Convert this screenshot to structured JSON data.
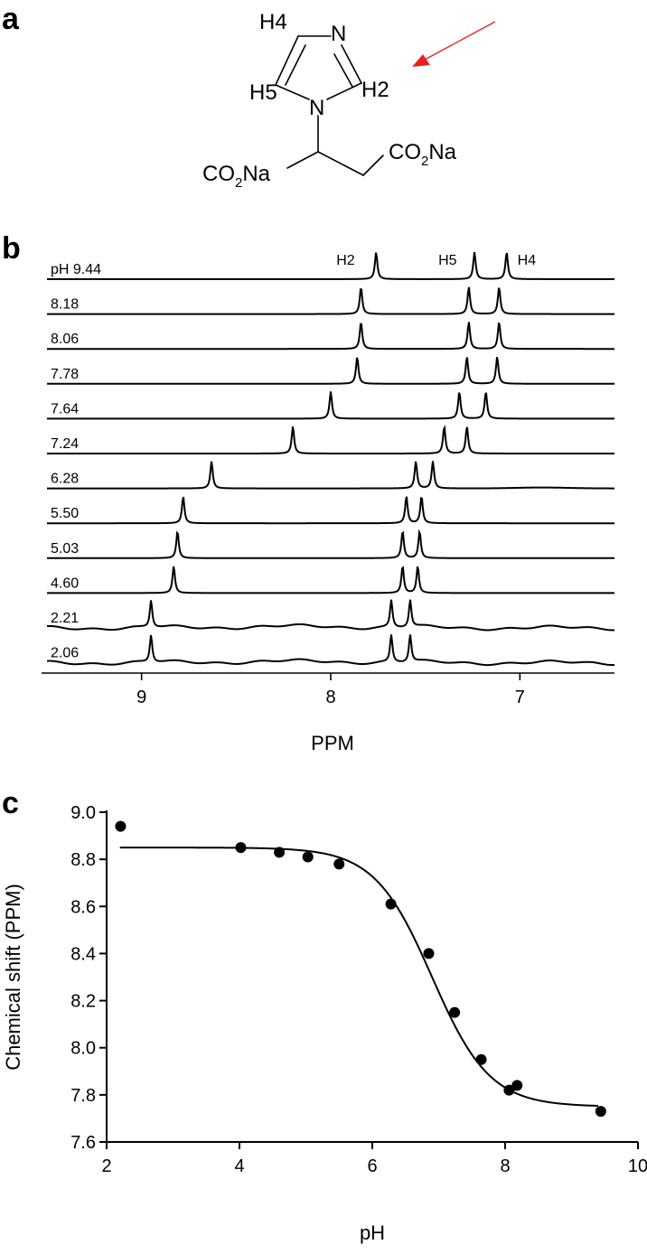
{
  "panel_labels": {
    "a": "a",
    "b": "b",
    "c": "c"
  },
  "colors": {
    "arrow": "#e8201e",
    "ink": "#000000"
  },
  "structure": {
    "atoms": {
      "n_top": "N",
      "n_bottom": "N",
      "h2": "H2",
      "h4": "H4",
      "h5": "H5"
    },
    "groups": {
      "left": {
        "main": "CO",
        "sub": "2",
        "tail": "Na"
      },
      "right": {
        "main": "CO",
        "sub": "2",
        "tail": "Na"
      }
    }
  },
  "chart_data": [
    {
      "type": "line",
      "title": "",
      "xlabel": "PPM",
      "ylabel": "",
      "x_reversed": true,
      "xlim": [
        9.5,
        6.5
      ],
      "xticks": [
        9,
        8,
        7
      ],
      "xtick_labels": [
        "9",
        "8",
        "7"
      ],
      "peak_labels": [
        "H2",
        "H5",
        "H4"
      ],
      "series": [
        {
          "name": "pH 9.44",
          "label": "pH 9.44",
          "peaks": [
            7.76,
            7.24,
            7.07
          ]
        },
        {
          "name": "8.18",
          "label": "8.18",
          "peaks": [
            7.84,
            7.27,
            7.11
          ]
        },
        {
          "name": "8.06",
          "label": "8.06",
          "peaks": [
            7.84,
            7.27,
            7.11
          ]
        },
        {
          "name": "7.78",
          "label": "7.78",
          "peaks": [
            7.86,
            7.28,
            7.12
          ]
        },
        {
          "name": "7.64",
          "label": "7.64",
          "peaks": [
            8.0,
            7.32,
            7.18
          ]
        },
        {
          "name": "7.24",
          "label": "7.24",
          "peaks": [
            8.2,
            7.4,
            7.28
          ]
        },
        {
          "name": "6.28",
          "label": "6.28",
          "peaks": [
            8.63,
            7.55,
            7.46
          ]
        },
        {
          "name": "5.50",
          "label": "5.50",
          "peaks": [
            8.78,
            7.6,
            7.52
          ]
        },
        {
          "name": "5.03",
          "label": "5.03",
          "peaks": [
            8.81,
            7.62,
            7.53
          ]
        },
        {
          "name": "4.60",
          "label": "4.60",
          "peaks": [
            8.83,
            7.62,
            7.54
          ]
        },
        {
          "name": "2.21",
          "label": "2.21",
          "peaks": [
            8.95,
            7.68,
            7.58
          ]
        },
        {
          "name": "2.06",
          "label": "2.06",
          "peaks": [
            8.95,
            7.68,
            7.58
          ]
        }
      ]
    },
    {
      "type": "scatter",
      "title": "",
      "xlabel": "pH",
      "ylabel": "Chemical shift (PPM)",
      "xlim": [
        2,
        10
      ],
      "ylim": [
        7.6,
        9.0
      ],
      "xticks": [
        2,
        4,
        6,
        8,
        10
      ],
      "yticks": [
        "7.6",
        "7.8",
        "8.0",
        "8.2",
        "8.4",
        "8.6",
        "8.8",
        "9.0"
      ],
      "points": [
        {
          "x": 2.21,
          "y": 8.94
        },
        {
          "x": 4.02,
          "y": 8.85
        },
        {
          "x": 4.6,
          "y": 8.83
        },
        {
          "x": 5.03,
          "y": 8.81
        },
        {
          "x": 5.5,
          "y": 8.78
        },
        {
          "x": 6.28,
          "y": 8.61
        },
        {
          "x": 6.85,
          "y": 8.4
        },
        {
          "x": 7.24,
          "y": 8.15
        },
        {
          "x": 7.64,
          "y": 7.95
        },
        {
          "x": 8.06,
          "y": 7.82
        },
        {
          "x": 8.18,
          "y": 7.84
        },
        {
          "x": 9.44,
          "y": 7.73
        }
      ],
      "fit_curve": {
        "x_range": [
          2.2,
          9.4
        ],
        "top": 8.85,
        "bottom": 7.75,
        "pKa": 6.9
      }
    }
  ]
}
